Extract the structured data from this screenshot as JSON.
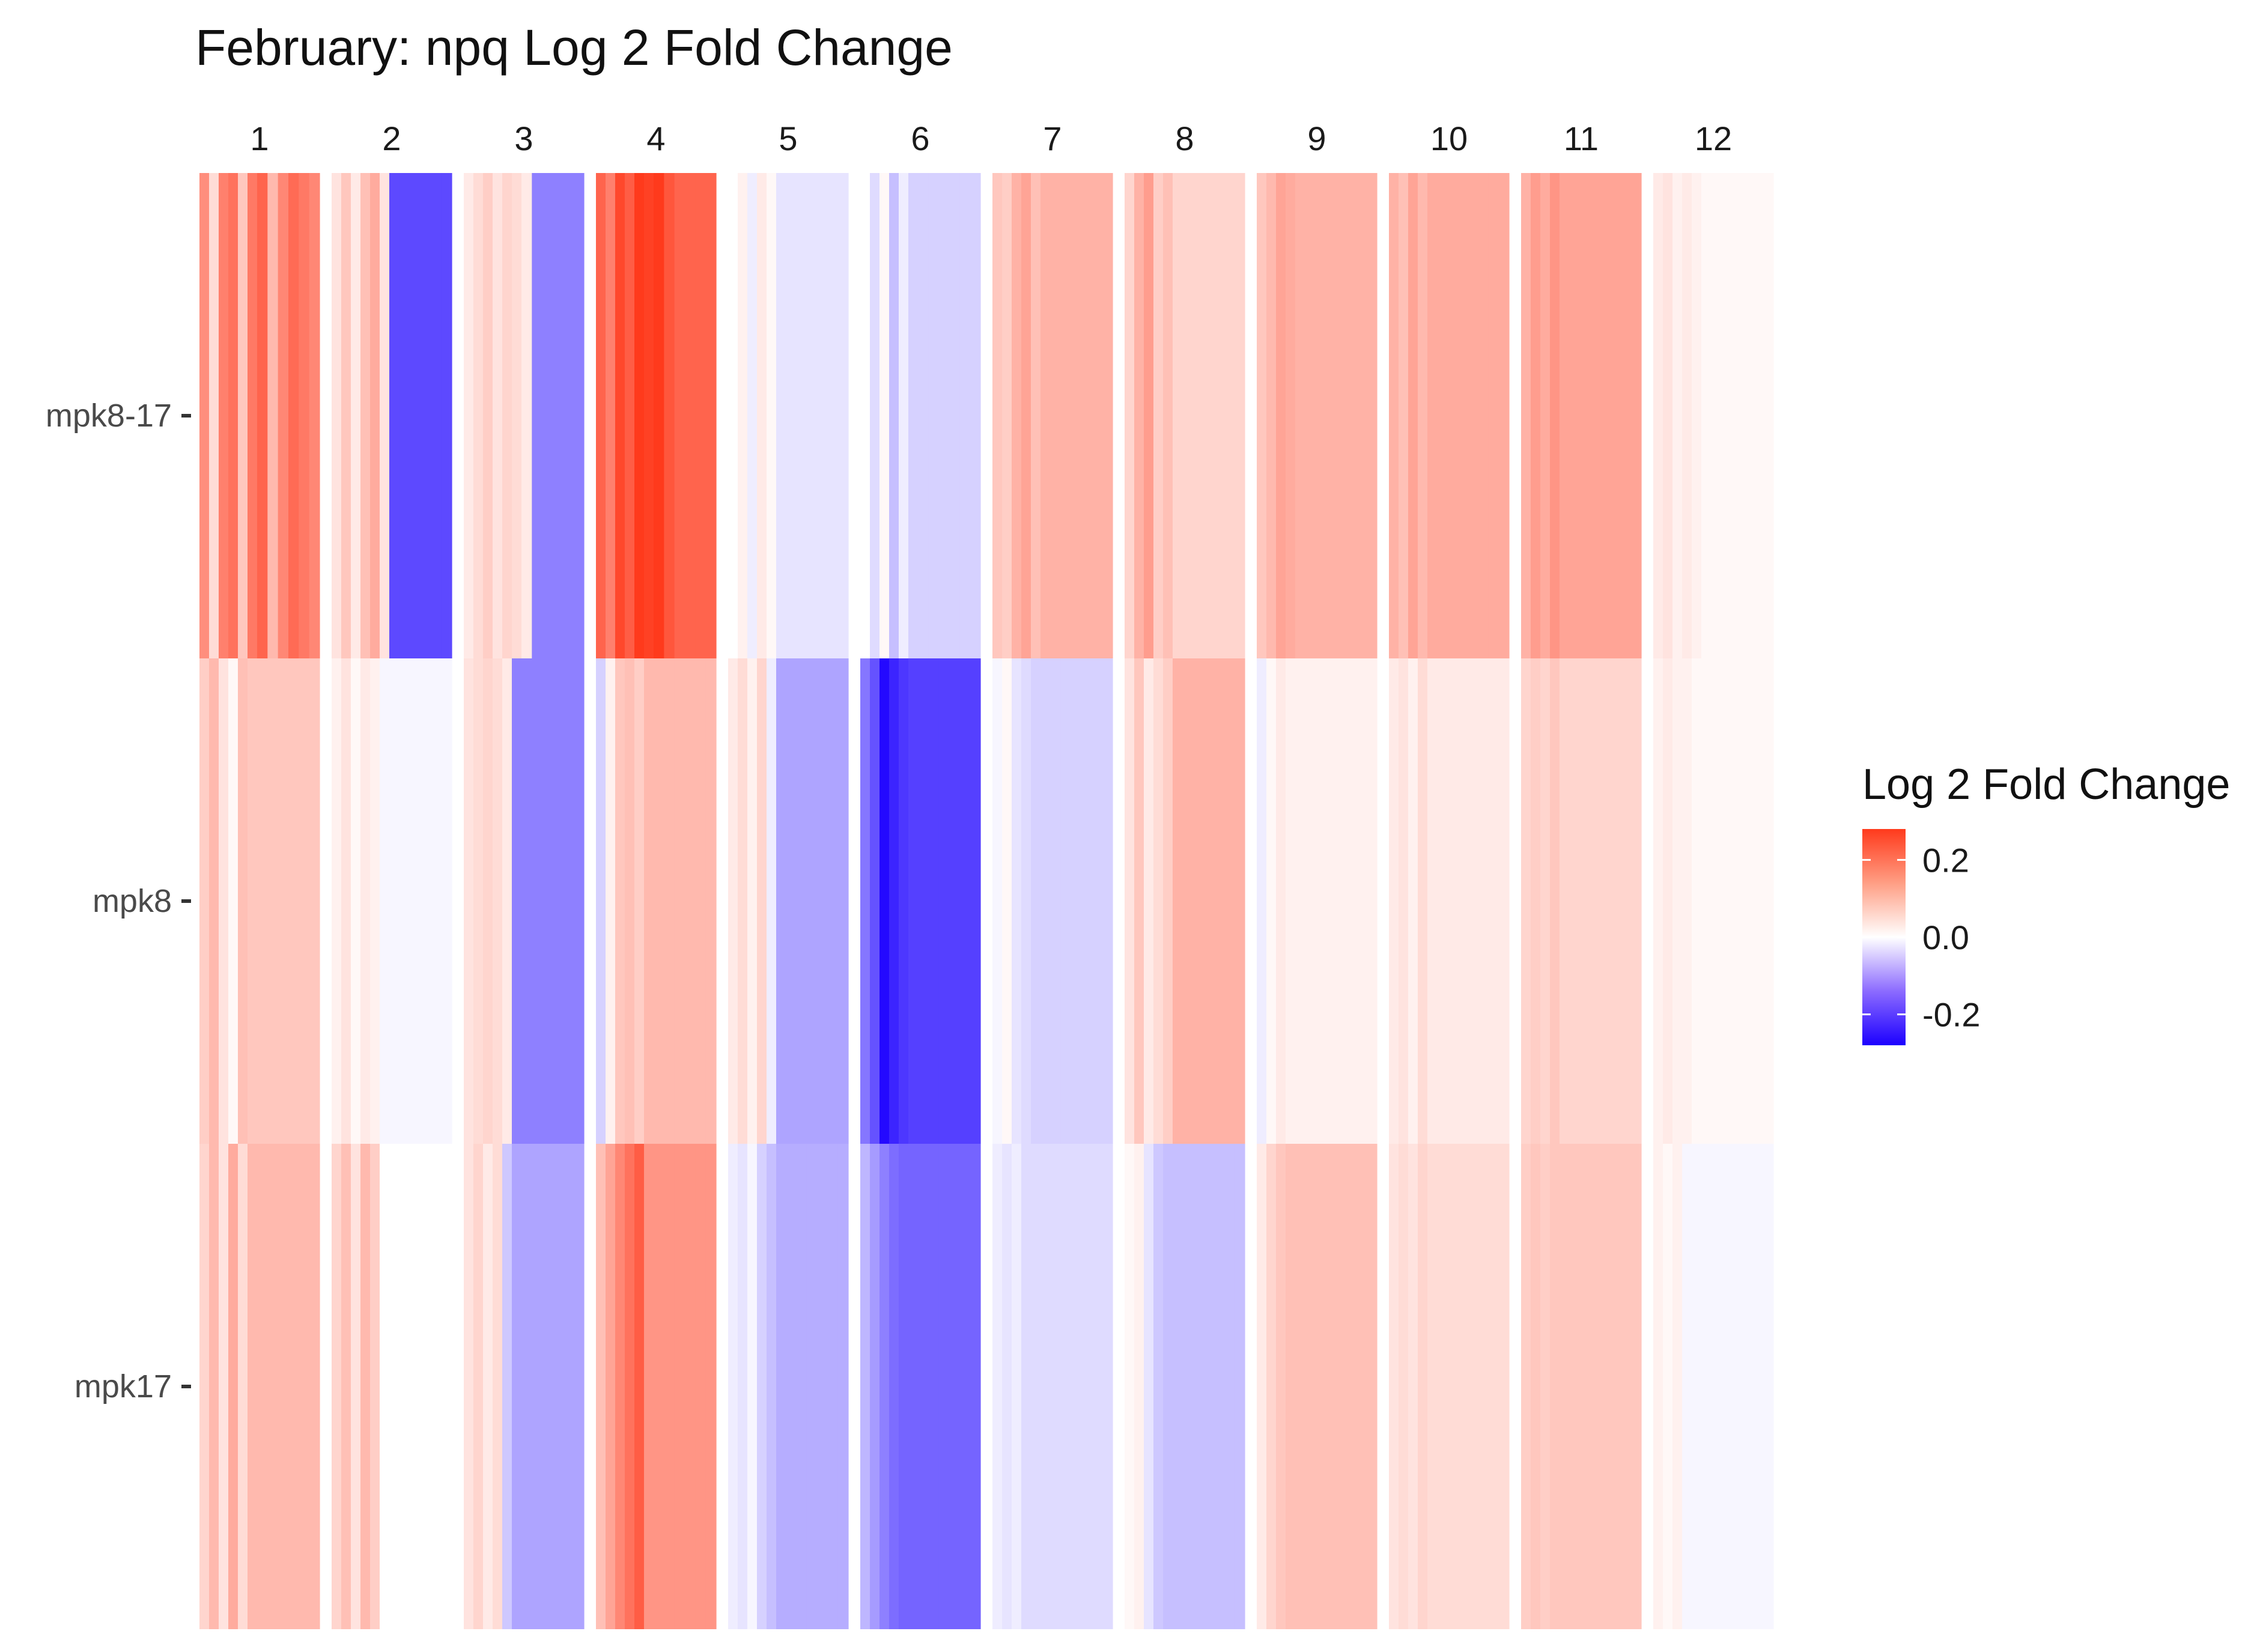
{
  "chart_data": {
    "type": "heatmap",
    "title": "February: npq Log 2 Fold Change",
    "facets": [
      "1",
      "2",
      "3",
      "4",
      "5",
      "6",
      "7",
      "8",
      "9",
      "10",
      "11",
      "12"
    ],
    "rows": [
      "mpk8-17",
      "mpk8",
      "mpk17"
    ],
    "legend": {
      "title": "Log 2 Fold Change",
      "ticks": [
        {
          "label": "0.2",
          "value": 0.2
        },
        {
          "label": "0.0",
          "value": 0.0
        },
        {
          "label": "-0.2",
          "value": -0.2
        }
      ],
      "range": [
        -0.28,
        0.28
      ],
      "colors": {
        "low": "#1c00ff",
        "mid": "#ffffff",
        "high": "#ff3a1c"
      },
      "placement": "right"
    },
    "values_note_free": true,
    "cells": {
      "mpk8-17": [
        [
          0.16,
          0.05,
          0.18,
          0.2,
          0.08,
          0.19,
          0.22,
          0.1,
          0.17,
          0.21,
          0.19,
          0.17
        ],
        [
          0.04,
          0.08,
          0.03,
          0.09,
          0.12,
          0.04,
          -0.2,
          -0.2,
          -0.2,
          -0.2,
          -0.2,
          -0.2
        ],
        [
          0.03,
          0.05,
          0.07,
          0.04,
          0.06,
          0.05,
          0.03,
          -0.14,
          -0.14,
          -0.14,
          -0.14,
          -0.14
        ],
        [
          0.22,
          0.18,
          0.26,
          0.23,
          0.28,
          0.27,
          0.28,
          0.24,
          0.22,
          0.22,
          0.22,
          0.22
        ],
        [
          0.0,
          0.02,
          -0.02,
          0.03,
          0.01,
          -0.03,
          -0.03,
          -0.03,
          -0.03,
          -0.03,
          -0.03,
          -0.03
        ],
        [
          0.0,
          -0.04,
          0.01,
          -0.07,
          -0.02,
          -0.05,
          -0.05,
          -0.05,
          -0.05,
          -0.05,
          -0.05,
          -0.05
        ],
        [
          0.08,
          0.07,
          0.11,
          0.13,
          0.09,
          0.11,
          0.11,
          0.11,
          0.11,
          0.11,
          0.11,
          0.11
        ],
        [
          0.06,
          0.11,
          0.14,
          0.07,
          0.09,
          0.06,
          0.06,
          0.06,
          0.06,
          0.06,
          0.06,
          0.06
        ],
        [
          0.08,
          0.1,
          0.13,
          0.12,
          0.11,
          0.11,
          0.11,
          0.11,
          0.11,
          0.11,
          0.11,
          0.11
        ],
        [
          0.11,
          0.09,
          0.13,
          0.1,
          0.12,
          0.12,
          0.12,
          0.12,
          0.12,
          0.12,
          0.12,
          0.12
        ],
        [
          0.11,
          0.14,
          0.12,
          0.15,
          0.13,
          0.13,
          0.13,
          0.13,
          0.13,
          0.13,
          0.13,
          0.13
        ],
        [
          0.03,
          0.04,
          0.02,
          0.03,
          0.02,
          0.01,
          0.01,
          0.01,
          0.01,
          0.01,
          0.01,
          0.01
        ]
      ],
      "mpk8": [
        [
          0.07,
          0.1,
          0.04,
          0.01,
          0.09,
          0.08,
          0.08,
          0.08,
          0.08,
          0.08,
          0.08,
          0.08
        ],
        [
          0.02,
          0.04,
          0.01,
          0.03,
          0.02,
          -0.01,
          -0.01,
          -0.01,
          -0.01,
          -0.01,
          -0.01,
          -0.01
        ],
        [
          0.04,
          0.05,
          0.06,
          0.05,
          0.03,
          -0.14,
          -0.14,
          -0.14,
          -0.14,
          -0.14,
          -0.14,
          -0.14
        ],
        [
          -0.05,
          0.02,
          0.08,
          0.09,
          0.07,
          0.1,
          0.1,
          0.1,
          0.1,
          0.1,
          0.1,
          0.1
        ],
        [
          0.03,
          0.05,
          0.02,
          0.06,
          -0.02,
          -0.1,
          -0.1,
          -0.1,
          -0.1,
          -0.1,
          -0.1,
          -0.1
        ],
        [
          -0.15,
          -0.19,
          -0.27,
          -0.24,
          -0.22,
          -0.21,
          -0.21,
          -0.21,
          -0.21,
          -0.21,
          -0.21,
          -0.21
        ],
        [
          -0.01,
          0.01,
          -0.03,
          -0.04,
          -0.05,
          -0.05,
          -0.05,
          -0.05,
          -0.05,
          -0.05,
          -0.05,
          -0.05
        ],
        [
          0.04,
          0.08,
          0.03,
          0.05,
          0.07,
          0.11,
          0.11,
          0.11,
          0.11,
          0.11,
          0.11,
          0.11
        ],
        [
          -0.02,
          0.01,
          0.03,
          0.02,
          0.02,
          0.02,
          0.02,
          0.02,
          0.02,
          0.02,
          0.02,
          0.02
        ],
        [
          0.03,
          0.04,
          0.02,
          0.05,
          0.03,
          0.03,
          0.03,
          0.03,
          0.03,
          0.03,
          0.03,
          0.03
        ],
        [
          0.06,
          0.07,
          0.06,
          0.08,
          0.06,
          0.06,
          0.06,
          0.06,
          0.06,
          0.06,
          0.06,
          0.06
        ],
        [
          0.02,
          0.03,
          0.02,
          0.02,
          0.01,
          0.01,
          0.01,
          0.01,
          0.01,
          0.01,
          0.01,
          0.01
        ]
      ],
      "mpk17": [
        [
          0.06,
          0.1,
          0.04,
          0.12,
          0.05,
          0.1,
          0.1,
          0.1,
          0.1,
          0.1,
          0.1,
          0.1
        ],
        [
          0.06,
          0.09,
          0.04,
          0.1,
          0.07,
          0.0,
          0.0,
          0.0,
          0.0,
          0.0,
          0.0,
          0.0
        ],
        [
          0.04,
          0.06,
          0.03,
          0.05,
          -0.06,
          -0.1,
          -0.1,
          -0.1,
          -0.1,
          -0.1,
          -0.1,
          -0.1
        ],
        [
          0.09,
          0.13,
          0.17,
          0.2,
          0.23,
          0.15,
          0.15,
          0.15,
          0.15,
          0.15,
          0.15,
          0.15
        ],
        [
          -0.02,
          -0.03,
          -0.01,
          -0.05,
          -0.07,
          -0.09,
          -0.09,
          -0.09,
          -0.09,
          -0.09,
          -0.09,
          -0.09
        ],
        [
          -0.08,
          -0.11,
          -0.14,
          -0.16,
          -0.17,
          -0.17,
          -0.17,
          -0.17,
          -0.17,
          -0.17,
          -0.17,
          -0.17
        ],
        [
          -0.02,
          -0.03,
          -0.02,
          -0.04,
          -0.04,
          -0.04,
          -0.04,
          -0.04,
          -0.04,
          -0.04,
          -0.04,
          -0.04
        ],
        [
          0.01,
          0.02,
          -0.03,
          -0.06,
          -0.07,
          -0.07,
          -0.07,
          -0.07,
          -0.07,
          -0.07,
          -0.07,
          -0.07
        ],
        [
          0.03,
          0.06,
          0.08,
          0.09,
          0.09,
          0.09,
          0.09,
          0.09,
          0.09,
          0.09,
          0.09,
          0.09
        ],
        [
          0.04,
          0.05,
          0.04,
          0.06,
          0.05,
          0.05,
          0.05,
          0.05,
          0.05,
          0.05,
          0.05,
          0.05
        ],
        [
          0.07,
          0.08,
          0.07,
          0.08,
          0.08,
          0.08,
          0.08,
          0.08,
          0.08,
          0.08,
          0.08,
          0.08
        ],
        [
          0.02,
          0.01,
          0.02,
          -0.01,
          -0.01,
          -0.01,
          -0.01,
          -0.01,
          -0.01,
          -0.01,
          -0.01,
          -0.01
        ]
      ]
    }
  }
}
